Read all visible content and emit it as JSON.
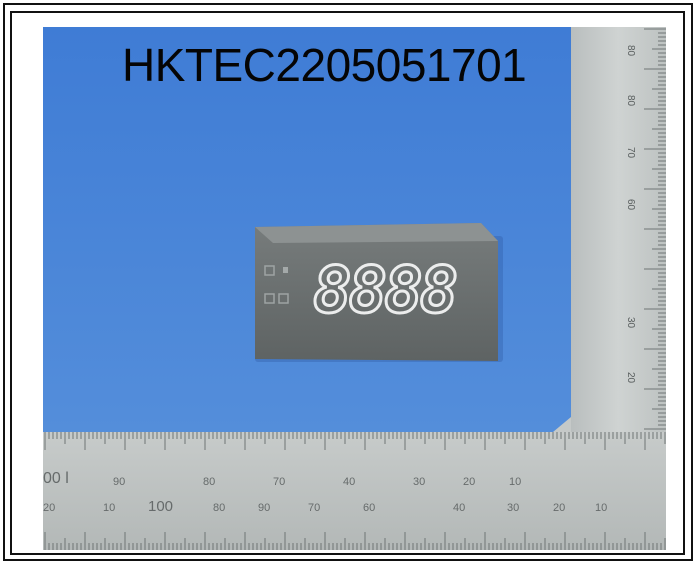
{
  "caption": "HKTEC2205051701",
  "display": {
    "digits": "8888"
  },
  "colors": {
    "background": "#4b86d8",
    "ruler": "#c5c9c8",
    "display_body": "#6b7070",
    "segment": "#f1f1f1"
  }
}
